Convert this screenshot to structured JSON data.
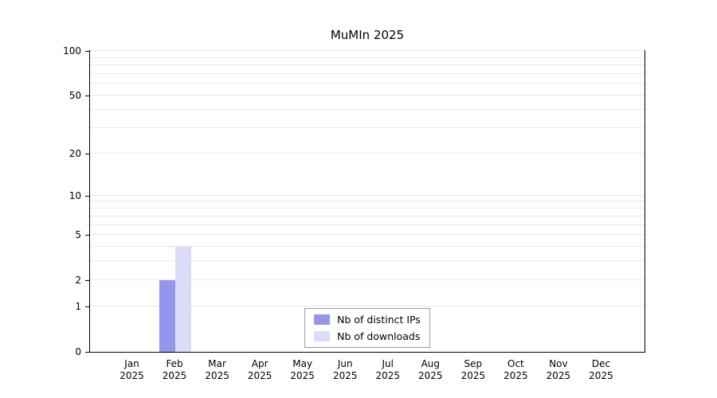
{
  "chart_data": {
    "type": "bar",
    "title": "MuMIn 2025",
    "categories": [
      "Jan 2025",
      "Feb 2025",
      "Mar 2025",
      "Apr 2025",
      "May 2025",
      "Jun 2025",
      "Jul 2025",
      "Aug 2025",
      "Sep 2025",
      "Oct 2025",
      "Nov 2025",
      "Dec 2025"
    ],
    "x_tick_labels": [
      [
        "Jan",
        "2025"
      ],
      [
        "Feb",
        "2025"
      ],
      [
        "Mar",
        "2025"
      ],
      [
        "Apr",
        "2025"
      ],
      [
        "May",
        "2025"
      ],
      [
        "Jun",
        "2025"
      ],
      [
        "Jul",
        "2025"
      ],
      [
        "Aug",
        "2025"
      ],
      [
        "Sep",
        "2025"
      ],
      [
        "Oct",
        "2025"
      ],
      [
        "Nov",
        "2025"
      ],
      [
        "Dec",
        "2025"
      ]
    ],
    "series": [
      {
        "name": "Nb of distinct IPs",
        "color": "#9595ec",
        "values": [
          0,
          2,
          0,
          0,
          0,
          0,
          0,
          0,
          0,
          0,
          0,
          0
        ]
      },
      {
        "name": "Nb of downloads",
        "color": "#dcdcf8",
        "values": [
          0,
          4,
          0,
          0,
          0,
          0,
          0,
          0,
          0,
          0,
          0,
          0
        ]
      }
    ],
    "y_axis": {
      "scale": "log10(1+x)",
      "tick_values": [
        0,
        1,
        2,
        5,
        10,
        20,
        50,
        100
      ],
      "minor_gridline_values": [
        1,
        2,
        3,
        4,
        5,
        6,
        7,
        8,
        9,
        10,
        20,
        30,
        40,
        50,
        60,
        70,
        80,
        90,
        100
      ],
      "min": 0,
      "max": 100
    },
    "grid": true,
    "legend_position": "bottom-center",
    "colors": {
      "gridline": "#e8e8e8",
      "plot_border": "#000000",
      "text": "#000000"
    }
  }
}
